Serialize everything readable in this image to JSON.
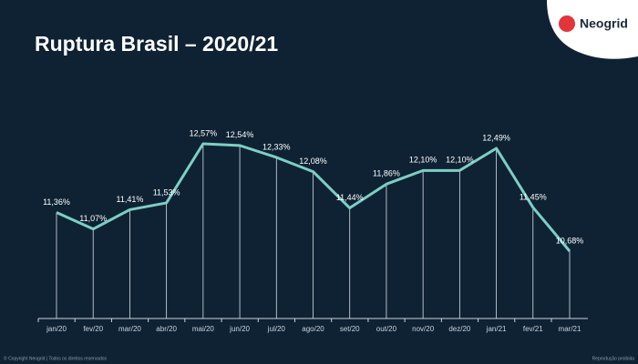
{
  "chart_data": {
    "type": "line",
    "title": "Ruptura Brasil – 2020/21",
    "brand": "Neogrid",
    "footer_left": "© Copyright Neogrid | Todos os direitos reservados",
    "footer_right": "Reprodução proibida",
    "categories": [
      "jan/20",
      "fev/20",
      "mar/20",
      "abr/20",
      "mai/20",
      "jun/20",
      "jul/20",
      "ago/20",
      "set/20",
      "out/20",
      "nov/20",
      "dez/20",
      "jan/21",
      "fev/21",
      "mar/21"
    ],
    "values": [
      11.36,
      11.07,
      11.41,
      11.53,
      12.57,
      12.54,
      12.33,
      12.08,
      11.44,
      11.86,
      12.1,
      12.1,
      12.49,
      11.45,
      10.68
    ],
    "value_labels": [
      "11,36%",
      "11,07%",
      "11,41%",
      "11,53%",
      "12,57%",
      "12,54%",
      "12,33%",
      "12,08%",
      "11,44%",
      "11,86%",
      "12,10%",
      "12,10%",
      "12,49%",
      "11,45%",
      "10,68%"
    ],
    "color": "#7ccfc4"
  }
}
